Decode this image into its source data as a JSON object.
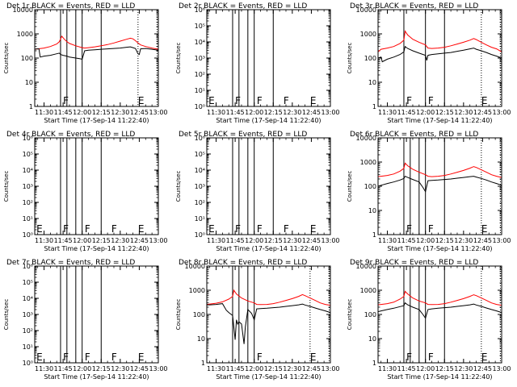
{
  "colors": {
    "events": "#000000",
    "lld": "#ff0000",
    "background": "#ffffff",
    "axes": "#000000"
  },
  "common": {
    "xlabel": "Start Time (17-Sep-14 11:22:40)",
    "ylabel": "Counts/sec",
    "x_ticks": [
      "11:30",
      "11:45",
      "12:00",
      "12:15",
      "12:30",
      "12:45",
      "13:00"
    ],
    "x_tick_minutes": [
      30,
      45,
      60,
      75,
      90,
      105,
      120
    ],
    "xlim_minutes": [
      22.67,
      120
    ]
  },
  "chart_data": [
    {
      "type": "line",
      "title": "Det 1r BLACK = Events, RED = LLD",
      "ylog": true,
      "ylim": [
        1,
        10000
      ],
      "yticks": [
        "1",
        "10",
        "100",
        "1000",
        "10000"
      ],
      "ytick_values": [
        1,
        10,
        100,
        1000,
        10000
      ],
      "vlines_solid": [
        43,
        48,
        55,
        60,
        75
      ],
      "vlines_dotted": [
        104,
        119
      ],
      "letters": [
        {
          "text": "F",
          "x": 45
        },
        {
          "text": "E",
          "x": 104
        }
      ],
      "series": [
        {
          "color": "red",
          "x": [
            22.67,
            25,
            30,
            35,
            40,
            42,
            44,
            46,
            48,
            50,
            55,
            60,
            62,
            65,
            70,
            75,
            80,
            85,
            90,
            95,
            98,
            100,
            102,
            104,
            106,
            110,
            115,
            120
          ],
          "y": [
            230,
            240,
            260,
            300,
            380,
            470,
            800,
            600,
            480,
            400,
            320,
            270,
            260,
            270,
            290,
            320,
            360,
            420,
            500,
            600,
            660,
            620,
            520,
            420,
            350,
            300,
            260,
            230
          ]
        },
        {
          "color": "black",
          "x": [
            22.67,
            24,
            26,
            27,
            30,
            35,
            40,
            42,
            43,
            45,
            48,
            50,
            55,
            58,
            60,
            62,
            65,
            70,
            75,
            80,
            85,
            90,
            95,
            98,
            100,
            102,
            104,
            105,
            106,
            110,
            115,
            120
          ],
          "y": [
            230,
            240,
            240,
            110,
            120,
            130,
            150,
            160,
            140,
            130,
            120,
            110,
            100,
            95,
            90,
            200,
            210,
            220,
            230,
            240,
            250,
            260,
            280,
            290,
            270,
            250,
            150,
            140,
            240,
            250,
            230,
            210
          ]
        }
      ]
    },
    {
      "type": "line",
      "title": "Det 2r BLACK = Events, RED = LLD",
      "ylog": true,
      "ylim": [
        1,
        1000000
      ],
      "yticks": [
        "10⁰",
        "10¹",
        "10²",
        "10³",
        "10⁴",
        "10⁵",
        "10⁶"
      ],
      "ytick_values": [
        1,
        10,
        100,
        1000,
        10000,
        100000,
        1000000
      ],
      "vlines_solid": [
        43,
        48,
        55,
        60,
        75
      ],
      "vlines_dotted": [],
      "letters": [
        {
          "text": "E",
          "x": 24
        },
        {
          "text": "F",
          "x": 45
        },
        {
          "text": "F",
          "x": 62
        },
        {
          "text": "F",
          "x": 83
        },
        {
          "text": "E",
          "x": 104
        }
      ],
      "series": []
    },
    {
      "type": "line",
      "title": "Det 3r BLACK = Events, RED = LLD",
      "ylog": true,
      "ylim": [
        1,
        10000
      ],
      "yticks": [
        "1",
        "10",
        "100",
        "1000",
        "10000"
      ],
      "ytick_values": [
        1,
        10,
        100,
        1000,
        10000
      ],
      "vlines_solid": [
        43,
        60,
        75
      ],
      "vlines_dotted": [
        104,
        119
      ],
      "letters": [
        {
          "text": "F",
          "x": 45
        },
        {
          "text": "F",
          "x": 62
        },
        {
          "text": "E",
          "x": 104
        }
      ],
      "series": [
        {
          "color": "red",
          "x": [
            22.67,
            25,
            30,
            35,
            40,
            43,
            44,
            46,
            50,
            55,
            60,
            62,
            65,
            70,
            75,
            80,
            85,
            90,
            95,
            98,
            100,
            104,
            108,
            112,
            116,
            120
          ],
          "y": [
            180,
            230,
            260,
            300,
            400,
            550,
            1300,
            900,
            600,
            450,
            350,
            260,
            250,
            260,
            280,
            320,
            380,
            450,
            550,
            640,
            580,
            450,
            350,
            280,
            240,
            180
          ]
        },
        {
          "color": "black",
          "x": [
            22.67,
            25,
            26,
            30,
            35,
            40,
            43,
            44,
            46,
            50,
            55,
            60,
            61,
            62,
            65,
            70,
            75,
            80,
            85,
            90,
            95,
            98,
            100,
            104,
            108,
            112,
            116,
            120
          ],
          "y": [
            100,
            110,
            70,
            90,
            110,
            140,
            180,
            300,
            250,
            200,
            160,
            130,
            80,
            130,
            140,
            150,
            160,
            170,
            190,
            210,
            240,
            260,
            230,
            200,
            170,
            140,
            120,
            100
          ]
        }
      ]
    },
    {
      "type": "line",
      "title": "Det 4r BLACK = Events, RED = LLD",
      "ylog": true,
      "ylim": [
        1,
        1000000
      ],
      "yticks": [
        "10⁰",
        "10¹",
        "10²",
        "10³",
        "10⁴",
        "10⁵",
        "10⁶"
      ],
      "ytick_values": [
        1,
        10,
        100,
        1000,
        10000,
        100000,
        1000000
      ],
      "vlines_solid": [
        43,
        48,
        55,
        60,
        75
      ],
      "vlines_dotted": [],
      "letters": [
        {
          "text": "E",
          "x": 24
        },
        {
          "text": "F",
          "x": 45
        },
        {
          "text": "F",
          "x": 62
        },
        {
          "text": "F",
          "x": 83
        },
        {
          "text": "E",
          "x": 104
        }
      ],
      "series": []
    },
    {
      "type": "line",
      "title": "Det 5r BLACK = Events, RED = LLD",
      "ylog": true,
      "ylim": [
        1,
        1000000
      ],
      "yticks": [
        "10⁰",
        "10¹",
        "10²",
        "10³",
        "10⁴",
        "10⁵",
        "10⁶"
      ],
      "ytick_values": [
        1,
        10,
        100,
        1000,
        10000,
        100000,
        1000000
      ],
      "vlines_solid": [
        43,
        48,
        55,
        60,
        75
      ],
      "vlines_dotted": [],
      "letters": [
        {
          "text": "E",
          "x": 24
        },
        {
          "text": "F",
          "x": 45
        },
        {
          "text": "F",
          "x": 62
        },
        {
          "text": "F",
          "x": 83
        },
        {
          "text": "E",
          "x": 104
        }
      ],
      "series": []
    },
    {
      "type": "line",
      "title": "Det 6r BLACK = Events, RED = LLD",
      "ylog": true,
      "ylim": [
        1,
        10000
      ],
      "yticks": [
        "1",
        "10",
        "100",
        "1000",
        "10000"
      ],
      "ytick_values": [
        1,
        10,
        100,
        1000,
        10000
      ],
      "vlines_solid": [
        43,
        48,
        55,
        60,
        75
      ],
      "vlines_dotted": [
        104,
        119
      ],
      "letters": [
        {
          "text": "F",
          "x": 45
        },
        {
          "text": "F",
          "x": 62
        },
        {
          "text": "E",
          "x": 104
        }
      ],
      "series": [
        {
          "color": "red",
          "x": [
            22.67,
            25,
            30,
            35,
            40,
            43,
            44,
            46,
            50,
            55,
            60,
            62,
            65,
            70,
            75,
            80,
            85,
            90,
            95,
            98,
            100,
            104,
            108,
            112,
            116,
            120
          ],
          "y": [
            250,
            260,
            280,
            320,
            420,
            550,
            900,
            700,
            500,
            380,
            300,
            260,
            250,
            260,
            280,
            320,
            380,
            450,
            560,
            650,
            600,
            480,
            380,
            300,
            260,
            230
          ]
        },
        {
          "color": "black",
          "x": [
            22.67,
            25,
            30,
            35,
            40,
            43,
            44,
            46,
            50,
            55,
            58,
            60,
            62,
            65,
            70,
            75,
            80,
            85,
            90,
            95,
            98,
            100,
            104,
            108,
            112,
            116,
            120
          ],
          "y": [
            100,
            110,
            130,
            150,
            180,
            210,
            260,
            230,
            190,
            150,
            90,
            60,
            170,
            175,
            180,
            190,
            200,
            215,
            230,
            250,
            260,
            240,
            210,
            180,
            150,
            130,
            110
          ]
        }
      ]
    },
    {
      "type": "line",
      "title": "Det 7r BLACK = Events, RED = LLD",
      "ylog": true,
      "ylim": [
        1,
        1000000
      ],
      "yticks": [
        "10⁰",
        "10¹",
        "10²",
        "10³",
        "10⁴",
        "10⁵",
        "10⁶"
      ],
      "ytick_values": [
        1,
        10,
        100,
        1000,
        10000,
        100000,
        1000000
      ],
      "vlines_solid": [
        43,
        48,
        55,
        60,
        75
      ],
      "vlines_dotted": [],
      "letters": [
        {
          "text": "E",
          "x": 24
        },
        {
          "text": "F",
          "x": 45
        },
        {
          "text": "F",
          "x": 62
        },
        {
          "text": "F",
          "x": 83
        },
        {
          "text": "E",
          "x": 104
        }
      ],
      "series": []
    },
    {
      "type": "line",
      "title": "Det 8r BLACK = Events, RED = LLD",
      "ylog": true,
      "ylim": [
        1,
        10000
      ],
      "yticks": [
        "1",
        "10",
        "100",
        "1000",
        "10000"
      ],
      "ytick_values": [
        1,
        10,
        100,
        1000,
        10000
      ],
      "vlines_solid": [
        43,
        48,
        55,
        60
      ],
      "vlines_dotted": [
        104,
        119
      ],
      "letters": [
        {
          "text": "F",
          "x": 62
        },
        {
          "text": "E",
          "x": 104
        }
      ],
      "series": [
        {
          "color": "red",
          "x": [
            22.67,
            25,
            30,
            35,
            40,
            43,
            44,
            46,
            50,
            55,
            60,
            62,
            65,
            70,
            75,
            80,
            85,
            90,
            95,
            98,
            100,
            104,
            108,
            112,
            116,
            120
          ],
          "y": [
            260,
            270,
            290,
            330,
            430,
            560,
            1000,
            700,
            480,
            360,
            300,
            260,
            255,
            260,
            280,
            320,
            380,
            450,
            560,
            660,
            600,
            480,
            380,
            300,
            260,
            240
          ]
        },
        {
          "color": "black",
          "x": [
            22.67,
            25,
            30,
            35,
            38,
            40,
            43,
            45,
            46,
            47,
            48,
            50,
            52,
            53,
            55,
            58,
            60,
            62,
            65,
            70,
            75,
            80,
            85,
            90,
            95,
            98,
            100,
            104,
            108,
            112,
            116,
            120
          ],
          "y": [
            250,
            250,
            260,
            280,
            150,
            120,
            90,
            9,
            60,
            40,
            50,
            40,
            6,
            30,
            160,
            110,
            60,
            170,
            175,
            180,
            190,
            200,
            215,
            230,
            250,
            270,
            245,
            215,
            185,
            160,
            140,
            120
          ]
        }
      ]
    },
    {
      "type": "line",
      "title": "Det 9r BLACK = Events, RED = LLD",
      "ylog": true,
      "ylim": [
        1,
        10000
      ],
      "yticks": [
        "1",
        "10",
        "100",
        "1000",
        "10000"
      ],
      "ytick_values": [
        1,
        10,
        100,
        1000,
        10000
      ],
      "vlines_solid": [
        43,
        48,
        55,
        60,
        75
      ],
      "vlines_dotted": [
        104,
        119
      ],
      "letters": [
        {
          "text": "F",
          "x": 45
        },
        {
          "text": "F",
          "x": 62
        },
        {
          "text": "E",
          "x": 104
        }
      ],
      "series": [
        {
          "color": "red",
          "x": [
            22.67,
            25,
            30,
            35,
            40,
            43,
            44,
            46,
            50,
            55,
            60,
            62,
            65,
            70,
            75,
            80,
            85,
            90,
            95,
            98,
            100,
            104,
            108,
            112,
            116,
            120
          ],
          "y": [
            250,
            260,
            280,
            320,
            430,
            560,
            900,
            700,
            480,
            360,
            300,
            260,
            255,
            260,
            280,
            320,
            380,
            450,
            560,
            650,
            600,
            480,
            380,
            300,
            260,
            240
          ]
        },
        {
          "color": "black",
          "x": [
            22.67,
            25,
            30,
            35,
            40,
            43,
            44,
            46,
            50,
            55,
            58,
            60,
            62,
            65,
            70,
            75,
            80,
            85,
            90,
            95,
            98,
            100,
            104,
            108,
            112,
            116,
            120
          ],
          "y": [
            130,
            140,
            160,
            180,
            210,
            230,
            300,
            250,
            200,
            160,
            100,
            70,
            160,
            170,
            180,
            190,
            200,
            215,
            230,
            250,
            270,
            245,
            215,
            185,
            160,
            140,
            120
          ]
        }
      ]
    }
  ]
}
